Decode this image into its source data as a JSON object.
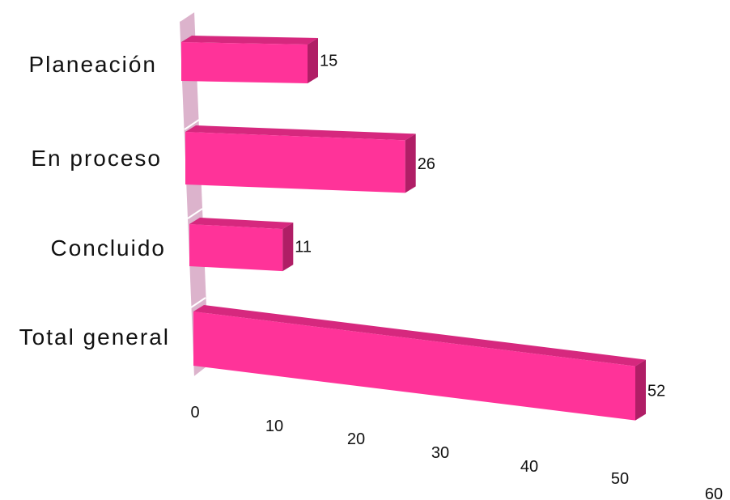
{
  "chart_data": {
    "type": "bar",
    "orientation": "horizontal",
    "categories": [
      "Planeación",
      "En proceso",
      "Concluido",
      "Total general"
    ],
    "values": [
      15,
      26,
      11,
      52
    ],
    "xticks": [
      0,
      10,
      20,
      30,
      40,
      50,
      60
    ],
    "xlim": [
      0,
      60
    ],
    "grid": false,
    "legend": "none",
    "title": "",
    "xlabel": "",
    "ylabel": ""
  },
  "colors": {
    "bar_front": "#ff3399",
    "bar_top": "#d6287e",
    "bar_side": "#b01e66",
    "axis_wall": "#dcb3cc"
  }
}
